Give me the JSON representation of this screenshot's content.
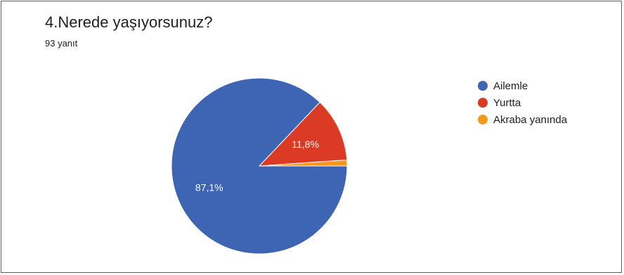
{
  "question": {
    "title": "4.Nerede yaşıyorsunuz?",
    "responses": "93 yanıt"
  },
  "chart_data": {
    "type": "pie",
    "title": "4.Nerede yaşıyorsunuz?",
    "categories": [
      "Ailemle",
      "Yurtta",
      "Akraba yanında"
    ],
    "values": [
      87.1,
      11.8,
      1.1
    ],
    "colors": [
      "#3e65b3",
      "#db3a24",
      "#f7981d"
    ],
    "data_labels": [
      "87,1%",
      "11,8%",
      ""
    ],
    "legend": "right"
  }
}
